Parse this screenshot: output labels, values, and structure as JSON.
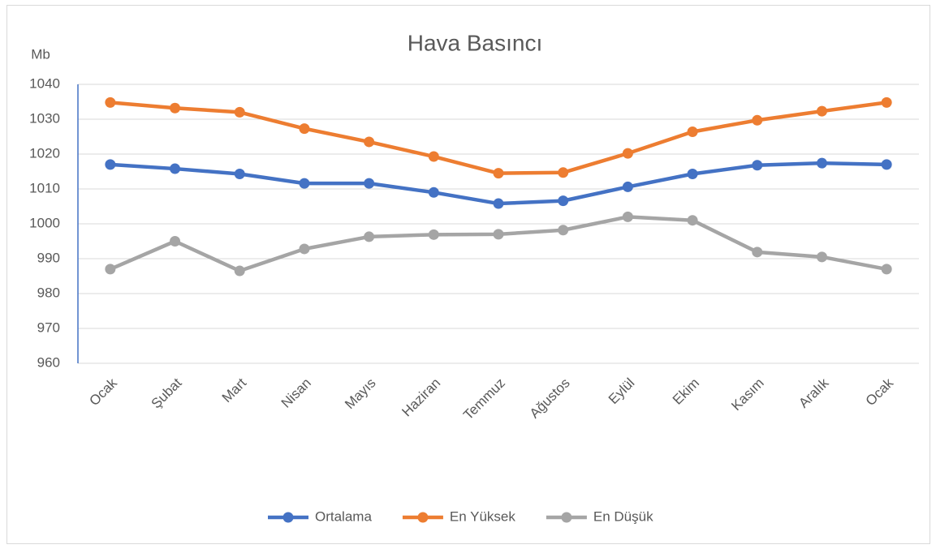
{
  "chart_data": {
    "type": "line",
    "title": "Hava Basıncı",
    "y_label": "Mb",
    "categories": [
      "Ocak",
      "Şubat",
      "Mart",
      "Nisan",
      "Mayıs",
      "Haziran",
      "Temmuz",
      "Ağustos",
      "Eylül",
      "Ekim",
      "Kasım",
      "Aralık",
      "Ocak"
    ],
    "series": [
      {
        "name": "Ortalama",
        "color": "#4472c4",
        "values": [
          1017,
          1015.8,
          1014.3,
          1011.6,
          1011.6,
          1009,
          1005.8,
          1006.6,
          1010.6,
          1014.3,
          1016.8,
          1017.4,
          1017
        ]
      },
      {
        "name": "En Yüksek",
        "color": "#ed7d31",
        "values": [
          1034.8,
          1033.2,
          1032,
          1027.3,
          1023.5,
          1019.3,
          1014.5,
          1014.7,
          1020.2,
          1026.4,
          1029.7,
          1032.3,
          1034.8
        ]
      },
      {
        "name": "En Düşük",
        "color": "#a5a5a5",
        "values": [
          987,
          995,
          986.5,
          992.8,
          996.3,
          996.9,
          997,
          998.2,
          1002,
          1001,
          991.9,
          990.5,
          987
        ]
      }
    ],
    "ylim": [
      960,
      1040
    ],
    "yticks": [
      960,
      970,
      980,
      990,
      1000,
      1010,
      1020,
      1030,
      1040
    ],
    "grid": true,
    "legend": "bottom"
  }
}
